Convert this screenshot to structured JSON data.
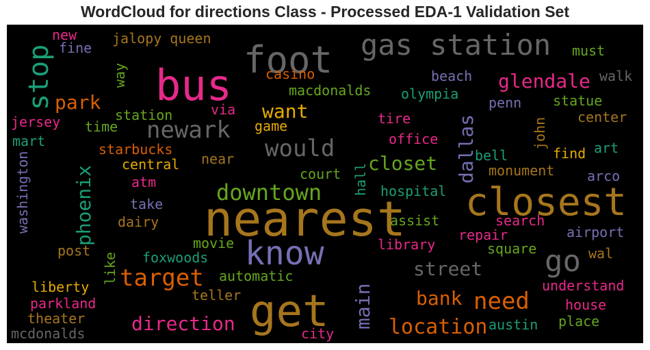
{
  "chart_data": {
    "type": "wordcloud",
    "title": "WordCloud for directions Class - Processed EDA-1 Validation Set",
    "background": "#000000",
    "palette": [
      "#1b9e77",
      "#d95f02",
      "#7570b3",
      "#e7298a",
      "#66a61e",
      "#e6ab02",
      "#a6761d",
      "#666666"
    ],
    "words": [
      {
        "text": "nearest",
        "color": "#a6761d"
      },
      {
        "text": "get",
        "color": "#a6761d"
      },
      {
        "text": "bus",
        "color": "#e7298a"
      },
      {
        "text": "closest",
        "color": "#a6761d"
      },
      {
        "text": "foot",
        "color": "#666666"
      },
      {
        "text": "know",
        "color": "#7570b3"
      },
      {
        "text": "gas station",
        "color": "#666666"
      },
      {
        "text": "stop",
        "color": "#1b9e77"
      },
      {
        "text": "go",
        "color": "#666666"
      },
      {
        "text": "downtown",
        "color": "#66a61e"
      },
      {
        "text": "target",
        "color": "#d95f02"
      },
      {
        "text": "newark",
        "color": "#666666"
      },
      {
        "text": "would",
        "color": "#666666"
      },
      {
        "text": "need",
        "color": "#d95f02"
      },
      {
        "text": "location",
        "color": "#d95f02"
      },
      {
        "text": "direction",
        "color": "#e7298a"
      },
      {
        "text": "glendale",
        "color": "#e7298a"
      },
      {
        "text": "park",
        "color": "#d95f02"
      },
      {
        "text": "street",
        "color": "#666666"
      },
      {
        "text": "phoenix",
        "color": "#1b9e77"
      },
      {
        "text": "closet",
        "color": "#66a61e"
      },
      {
        "text": "want",
        "color": "#e6ab02"
      },
      {
        "text": "bank",
        "color": "#d95f02"
      },
      {
        "text": "dallas",
        "color": "#7570b3"
      },
      {
        "text": "main",
        "color": "#7570b3"
      },
      {
        "text": "jalopy queen",
        "color": "#a6761d"
      },
      {
        "text": "macdonalds",
        "color": "#66a61e"
      },
      {
        "text": "casino",
        "color": "#d95f02"
      },
      {
        "text": "olympia",
        "color": "#1b9e77"
      },
      {
        "text": "beach",
        "color": "#7570b3"
      },
      {
        "text": "walk",
        "color": "#666666"
      },
      {
        "text": "must",
        "color": "#66a61e"
      },
      {
        "text": "statue",
        "color": "#66a61e"
      },
      {
        "text": "penn",
        "color": "#7570b3"
      },
      {
        "text": "center",
        "color": "#a6761d"
      },
      {
        "text": "tire",
        "color": "#e7298a"
      },
      {
        "text": "office",
        "color": "#e7298a"
      },
      {
        "text": "john",
        "color": "#a6761d"
      },
      {
        "text": "find",
        "color": "#e6ab02"
      },
      {
        "text": "art",
        "color": "#1b9e77"
      },
      {
        "text": "bell",
        "color": "#1b9e77"
      },
      {
        "text": "monument",
        "color": "#a6761d"
      },
      {
        "text": "arco",
        "color": "#7570b3"
      },
      {
        "text": "court",
        "color": "#66a61e"
      },
      {
        "text": "hall",
        "color": "#1b9e77"
      },
      {
        "text": "hospital",
        "color": "#1b9e77"
      },
      {
        "text": "assist",
        "color": "#66a61e"
      },
      {
        "text": "search",
        "color": "#e7298a"
      },
      {
        "text": "airport",
        "color": "#7570b3"
      },
      {
        "text": "repair",
        "color": "#e7298a"
      },
      {
        "text": "library",
        "color": "#e7298a"
      },
      {
        "text": "square",
        "color": "#66a61e"
      },
      {
        "text": "wal",
        "color": "#a6761d"
      },
      {
        "text": "understand",
        "color": "#e7298a"
      },
      {
        "text": "house",
        "color": "#e7298a"
      },
      {
        "text": "austin",
        "color": "#1b9e77"
      },
      {
        "text": "place",
        "color": "#66a61e"
      },
      {
        "text": "city",
        "color": "#e7298a"
      },
      {
        "text": "new",
        "color": "#e7298a"
      },
      {
        "text": "fine",
        "color": "#7570b3"
      },
      {
        "text": "way",
        "color": "#66a61e"
      },
      {
        "text": "jersey",
        "color": "#e7298a"
      },
      {
        "text": "time",
        "color": "#66a61e"
      },
      {
        "text": "station",
        "color": "#66a61e"
      },
      {
        "text": "via",
        "color": "#e7298a"
      },
      {
        "text": "game",
        "color": "#e6ab02"
      },
      {
        "text": "mart",
        "color": "#1b9e77"
      },
      {
        "text": "starbucks",
        "color": "#d95f02"
      },
      {
        "text": "central",
        "color": "#e6ab02"
      },
      {
        "text": "near",
        "color": "#a6761d"
      },
      {
        "text": "atm",
        "color": "#e7298a"
      },
      {
        "text": "take",
        "color": "#7570b3"
      },
      {
        "text": "dairy",
        "color": "#a6761d"
      },
      {
        "text": "washington",
        "color": "#7570b3"
      },
      {
        "text": "movie",
        "color": "#66a61e"
      },
      {
        "text": "post",
        "color": "#a6761d"
      },
      {
        "text": "like",
        "color": "#66a61e"
      },
      {
        "text": "foxwoods",
        "color": "#1b9e77"
      },
      {
        "text": "automatic",
        "color": "#66a61e"
      },
      {
        "text": "teller",
        "color": "#a6761d"
      },
      {
        "text": "liberty",
        "color": "#e6ab02"
      },
      {
        "text": "parkland",
        "color": "#e7298a"
      },
      {
        "text": "theater",
        "color": "#a6761d"
      },
      {
        "text": "mcdonalds",
        "color": "#666666"
      }
    ]
  }
}
